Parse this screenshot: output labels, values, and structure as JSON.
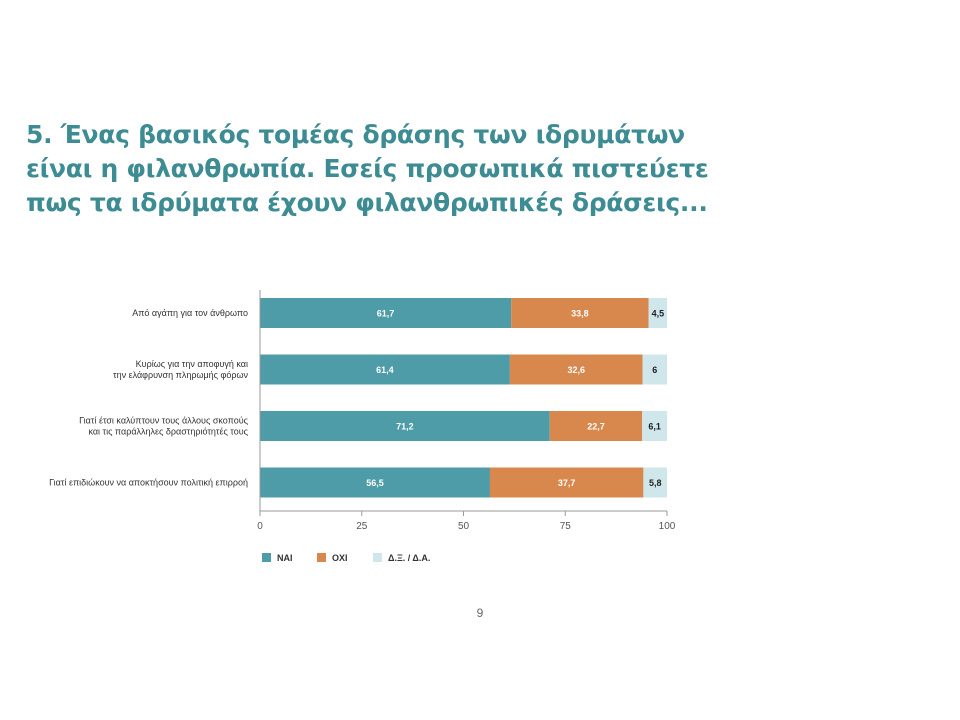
{
  "page": {
    "title": "5. Ένας βασικός τομέας δράσης των ιδρυμάτων είναι η φιλανθρωπία. Εσείς προσωπικά πιστεύετε πως τα ιδρύματα έχουν φιλανθρωπικές δράσεις...",
    "page_number": "9"
  },
  "colors": {
    "title": "#3d8c93",
    "nai": "#4e9ca8",
    "oxi": "#d9884d",
    "dxda": "#cfe7ea"
  },
  "chart_data": {
    "type": "bar",
    "orientation": "horizontal",
    "stacked": true,
    "categories": [
      [
        "Από αγάπη για τον άνθρωπο"
      ],
      [
        "Κυρίως για την αποφυγή και",
        "την ελάφρυνση πληρωμής φόρων"
      ],
      [
        "Γιατί έτσι καλύπτουν τους άλλους σκοπούς",
        "και τις παράλληλες δραστηριότητές τους"
      ],
      [
        "Γιατί επιδιώκουν να αποκτήσουν πολιτική επιρροή"
      ]
    ],
    "series": [
      {
        "name": "ΝΑΙ",
        "values": [
          61.7,
          61.4,
          71.2,
          56.5
        ],
        "labels": [
          "61,7",
          "61,4",
          "71,2",
          "56,5"
        ]
      },
      {
        "name": "ΟΧΙ",
        "values": [
          33.8,
          32.6,
          22.7,
          37.7
        ],
        "labels": [
          "33,8",
          "32,6",
          "22,7",
          "37,7"
        ]
      },
      {
        "name": "Δ.Ξ. / Δ.Α.",
        "values": [
          4.5,
          6,
          6.1,
          5.8
        ],
        "labels": [
          "4,5",
          "6",
          "6,1",
          "5,8"
        ]
      }
    ],
    "xticks": [
      "0",
      "25",
      "50",
      "75",
      "100"
    ],
    "xlim": [
      0,
      100
    ],
    "legend_position": "bottom-left",
    "grid": false
  }
}
